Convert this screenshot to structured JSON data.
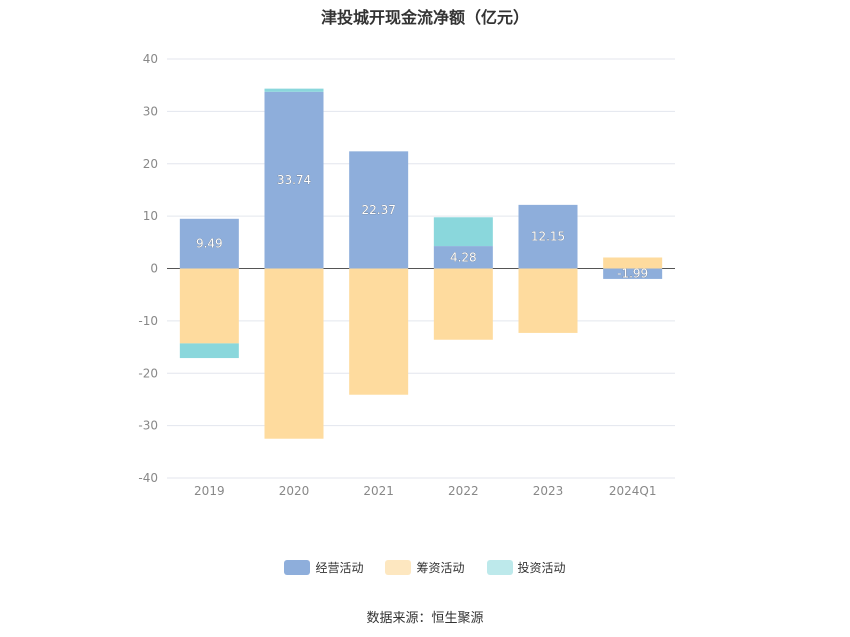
{
  "chart_data": {
    "type": "bar",
    "stacked": true,
    "title": "津投城开现金流净额（亿元）",
    "categories": [
      "2019",
      "2020",
      "2021",
      "2022",
      "2023",
      "2024Q1"
    ],
    "series": [
      {
        "name": "经营活动",
        "color": "#8eaedb",
        "values": [
          9.49,
          33.74,
          22.37,
          4.28,
          12.15,
          -1.99
        ]
      },
      {
        "name": "筹资活动",
        "color": "#fedb9e",
        "values": [
          -14.3,
          -32.5,
          -24.1,
          -13.6,
          -12.3,
          2.1
        ]
      },
      {
        "name": "投资活动",
        "color": "#8ad7dc",
        "values": [
          -2.8,
          0.6,
          0.0,
          5.5,
          0.0,
          0.0
        ]
      }
    ],
    "data_labels": [
      "9.49",
      "33.74",
      "22.37",
      "4.28",
      "12.15",
      "-1.99"
    ],
    "yticks": [
      "40",
      "30",
      "20",
      "10",
      "0",
      "-10",
      "-20",
      "-30",
      "-40"
    ],
    "ylim": [
      -40,
      40
    ],
    "grid": true,
    "legend_position": "bottom"
  },
  "legend": [
    {
      "label": "经营活动",
      "color": "#8eaedb"
    },
    {
      "label": "筹资活动",
      "color": "#fde7c0"
    },
    {
      "label": "投资活动",
      "color": "#bde9eb"
    }
  ],
  "source": "数据来源：恒生聚源"
}
